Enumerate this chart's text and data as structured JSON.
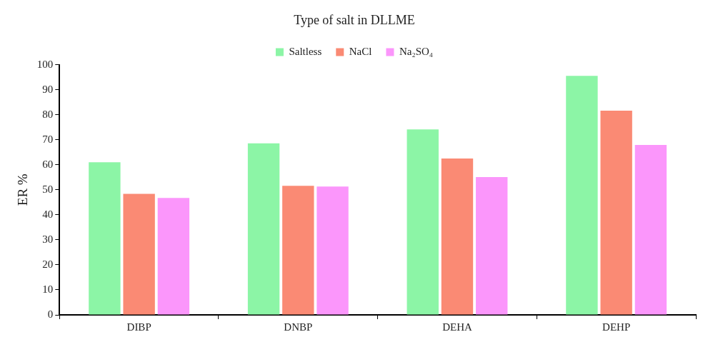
{
  "chart_data": {
    "type": "bar",
    "title": "Type of salt in DLLME",
    "ylabel": "ER %",
    "categories": [
      "DIBP",
      "DNBP",
      "DEHA",
      "DEHP"
    ],
    "series": [
      {
        "name": "Saltless",
        "color": "#8cf5a6",
        "values": [
          61.0,
          68.6,
          74.1,
          95.5
        ]
      },
      {
        "name": "NaCl",
        "color": "#fa8a74",
        "values": [
          48.4,
          51.6,
          62.5,
          81.6
        ]
      },
      {
        "name": "Na₂SO₄",
        "color": "#fb96fb",
        "values": [
          46.7,
          51.3,
          55.1,
          67.9
        ]
      }
    ],
    "ylim": [
      0,
      100
    ],
    "yticks": [
      0,
      10,
      20,
      30,
      40,
      50,
      60,
      70,
      80,
      90,
      100
    ],
    "grid": false,
    "legend": "top"
  }
}
